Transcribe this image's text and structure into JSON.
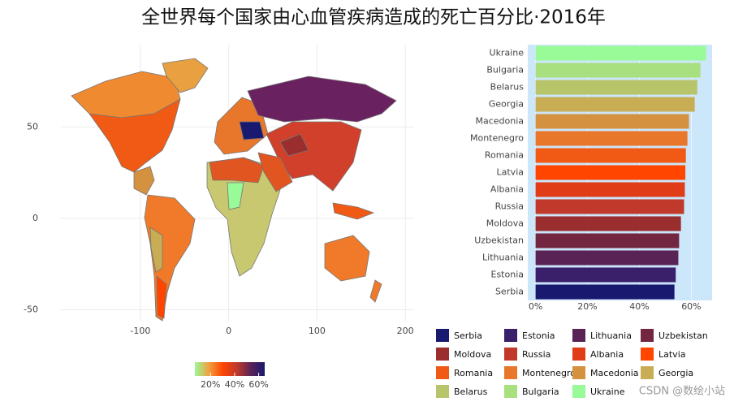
{
  "chart_data": [
    {
      "type": "map",
      "title": "全世界每个国家由心血管疾病造成的死亡百分比·2016年",
      "xlim": [
        -190,
        210
      ],
      "ylim": [
        -56,
        95
      ],
      "xticks": [
        -100,
        0,
        100,
        200
      ],
      "yticks": [
        -50,
        0,
        50
      ],
      "grid": true,
      "colorbar": {
        "lim": [
          7,
          65
        ],
        "colors": [
          "#98fb98",
          "#f0a040",
          "#ff4500",
          "#c0392b",
          "#5a2356",
          "#191970"
        ],
        "ticks": [
          {
            "value": 20,
            "label": "20%"
          },
          {
            "value": 40,
            "label": "40%"
          },
          {
            "value": 60,
            "label": "60%"
          }
        ]
      },
      "watermark": "CSDN @数绘小站"
    },
    {
      "type": "hbar",
      "categories": [
        "Serbia",
        "Estonia",
        "Lithuania",
        "Uzbekistan",
        "Moldova",
        "Russia",
        "Albania",
        "Latvia",
        "Romania",
        "Montenegro",
        "Macedonia",
        "Georgia",
        "Belarus",
        "Bulgaria",
        "Ukraine"
      ],
      "values": [
        53.5,
        54,
        55,
        55.3,
        56,
        57.2,
        57.5,
        57.7,
        57.9,
        58.5,
        59.1,
        61.3,
        62.3,
        63.5,
        65.7
      ],
      "colors": [
        "#191970",
        "#3a1f6a",
        "#5a2356",
        "#722640",
        "#9a2d2d",
        "#c0392b",
        "#e03c18",
        "#ff4500",
        "#f05a14",
        "#e8762b",
        "#d4913f",
        "#c8ad55",
        "#b8c46a",
        "#a8e080",
        "#98fb98"
      ],
      "xlim": [
        -3,
        68
      ],
      "xticks": [
        {
          "value": 0,
          "label": "0%"
        },
        {
          "value": 20,
          "label": "20%"
        },
        {
          "value": 40,
          "label": "40%"
        },
        {
          "value": 60,
          "label": "60%"
        }
      ],
      "background": "#cce6fa"
    }
  ]
}
